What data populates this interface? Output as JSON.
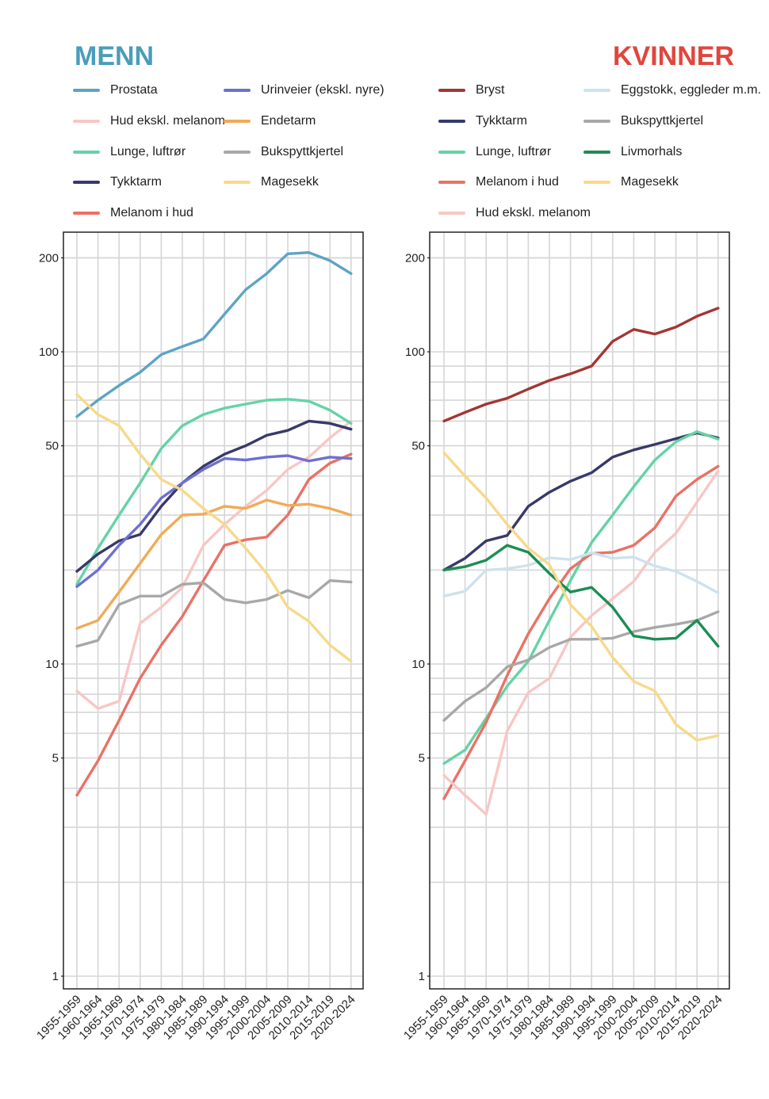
{
  "chart_data": [
    {
      "type": "line",
      "title": "MENN",
      "title_color": "#4a9dbb",
      "y_scale": "log",
      "ylim": [
        1,
        230
      ],
      "y_ticks": [
        1,
        5,
        10,
        50,
        100,
        200
      ],
      "grid": true,
      "legend_position": "top",
      "categories": [
        "1955-1959",
        "1960-1964",
        "1965-1969",
        "1970-1974",
        "1975-1979",
        "1980-1984",
        "1985-1989",
        "1990-1994",
        "1995-1999",
        "2000-2004",
        "2005-2009",
        "2010-2014",
        "2015-2019",
        "2020-2024"
      ],
      "series": [
        {
          "name": "Prostata",
          "color": "#5ea3c4",
          "values": [
            62,
            70,
            78,
            86,
            98,
            104,
            110,
            132,
            158,
            178,
            206,
            208,
            196,
            178
          ]
        },
        {
          "name": "Hud ekskl. melanom",
          "color": "#f7c7c4",
          "values": [
            8.2,
            7.2,
            7.6,
            13.5,
            15.2,
            17.6,
            24,
            28,
            32,
            36,
            42,
            46,
            53,
            60
          ]
        },
        {
          "name": "Lunge, luftrør",
          "color": "#64d3a6",
          "values": [
            18,
            23.5,
            30,
            38,
            49,
            58,
            63,
            66,
            68,
            70,
            70.5,
            69.5,
            65,
            59
          ]
        },
        {
          "name": "Tykktarm",
          "color": "#373a68",
          "values": [
            19.8,
            22.5,
            24.8,
            26,
            32,
            38,
            43,
            47,
            50,
            54,
            56,
            60,
            59,
            56.5
          ]
        },
        {
          "name": "Melanom i hud",
          "color": "#ea7166",
          "values": [
            3.8,
            4.9,
            6.6,
            9,
            11.5,
            14.2,
            18.5,
            24,
            25,
            25.5,
            30,
            39,
            44,
            47
          ]
        },
        {
          "name": "Urinveier (ekskl. nyre)",
          "color": "#6e6fd1",
          "values": [
            17.7,
            20,
            24,
            28,
            34,
            38,
            42,
            45.5,
            45,
            46,
            46.5,
            44.7,
            46,
            45.5
          ]
        },
        {
          "name": "Endetarm",
          "color": "#f0ab58",
          "values": [
            13,
            13.8,
            17,
            21,
            26,
            30,
            30.2,
            32,
            31.5,
            33.5,
            32.2,
            32.5,
            31.5,
            30
          ]
        },
        {
          "name": "Bukspyttkjertel",
          "color": "#a8a8a8",
          "values": [
            11.4,
            11.9,
            15.5,
            16.5,
            16.5,
            18,
            18.2,
            16.1,
            15.7,
            16.1,
            17.2,
            16.3,
            18.5,
            18.3
          ]
        },
        {
          "name": "Magesekk",
          "color": "#f7d98a",
          "values": [
            73,
            63,
            58,
            47,
            39,
            36,
            31.5,
            28,
            23.5,
            19.5,
            15.2,
            13.7,
            11.5,
            10.2
          ]
        }
      ]
    },
    {
      "type": "line",
      "title": "KVINNER",
      "title_color": "#e0463d",
      "y_scale": "log",
      "ylim": [
        1,
        230
      ],
      "y_ticks": [
        1,
        5,
        10,
        50,
        100,
        200
      ],
      "grid": true,
      "legend_position": "top",
      "categories": [
        "1955-1959",
        "1960-1964",
        "1965-1969",
        "1970-1974",
        "1975-1979",
        "1980-1984",
        "1985-1989",
        "1990-1994",
        "1995-1999",
        "2000-2004",
        "2005-2009",
        "2010-2014",
        "2015-2019",
        "2020-2024"
      ],
      "series": [
        {
          "name": "Bryst",
          "color": "#a33634",
          "values": [
            60,
            64,
            68,
            71,
            76,
            81,
            85,
            90,
            108,
            118,
            114,
            120,
            130,
            138
          ]
        },
        {
          "name": "Tykktarm",
          "color": "#373a68",
          "values": [
            20,
            21.8,
            24.8,
            25.8,
            32,
            35.5,
            38.5,
            41,
            46,
            48.5,
            50.5,
            52.7,
            55,
            53
          ]
        },
        {
          "name": "Lunge, luftrør",
          "color": "#64d3a6",
          "values": [
            4.8,
            5.3,
            6.7,
            8.5,
            10.2,
            13.8,
            18.5,
            24.5,
            30,
            37,
            45,
            51.5,
            55.5,
            52.5
          ]
        },
        {
          "name": "Melanom i hud",
          "color": "#ea7166",
          "values": [
            3.7,
            4.9,
            6.5,
            9.2,
            12.5,
            16.2,
            20.2,
            22.6,
            22.8,
            24,
            27.3,
            34.5,
            39,
            43
          ]
        },
        {
          "name": "Hud ekskl. melanom",
          "color": "#f7c7c4",
          "values": [
            4.4,
            3.8,
            3.3,
            6.1,
            8.1,
            9,
            12.2,
            14.3,
            16.2,
            18.4,
            22.8,
            26.2,
            33,
            41.5
          ]
        },
        {
          "name": "Eggstokk, eggleder m.m.",
          "color": "#cde2ee",
          "values": [
            16.5,
            17.1,
            20,
            20.2,
            20.7,
            21.9,
            21.6,
            22.7,
            21.8,
            22,
            20.6,
            19.8,
            18.4,
            16.9
          ]
        },
        {
          "name": "Bukspyttkjertel",
          "color": "#a8a8a8",
          "values": [
            6.6,
            7.6,
            8.4,
            9.8,
            10.3,
            11.3,
            12,
            12,
            12.1,
            12.7,
            13.1,
            13.4,
            13.8,
            14.7
          ]
        },
        {
          "name": "Livmorhals",
          "color": "#1e8c54",
          "values": [
            20,
            20.5,
            21.5,
            24,
            22.8,
            19.5,
            17,
            17.6,
            15.2,
            12.3,
            12,
            12.1,
            13.8,
            11.4
          ]
        },
        {
          "name": "Magesekk",
          "color": "#f7d98a",
          "values": [
            47.5,
            40,
            34,
            28,
            23.5,
            20.8,
            15.5,
            13.2,
            10.5,
            8.8,
            8.2,
            6.4,
            5.7,
            5.9
          ]
        }
      ]
    }
  ]
}
